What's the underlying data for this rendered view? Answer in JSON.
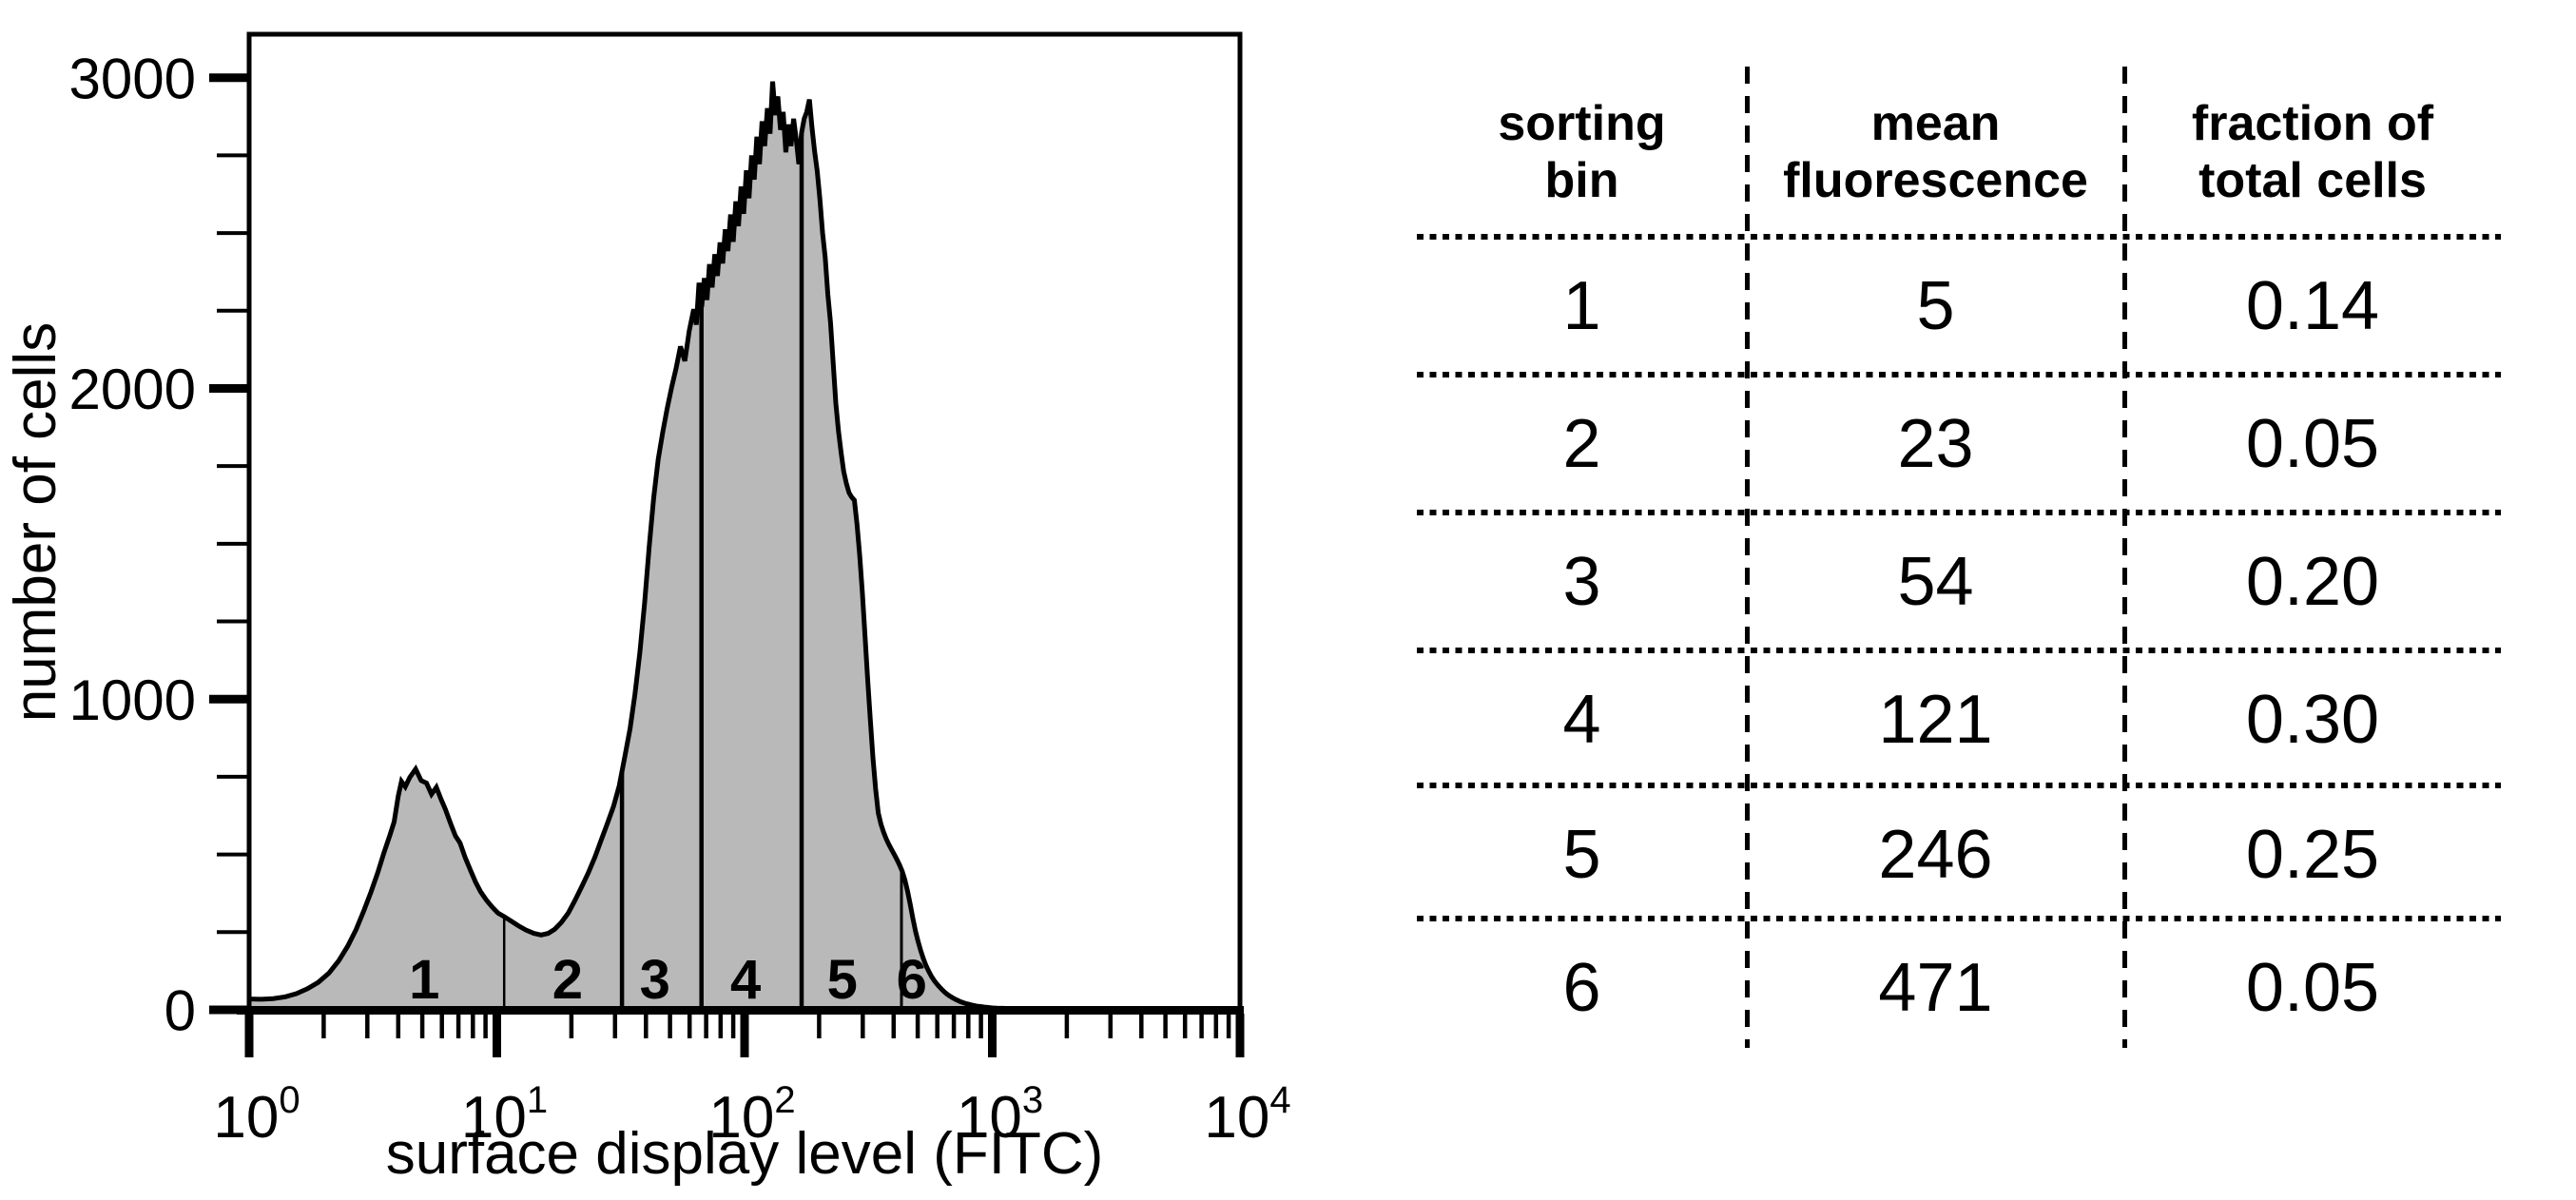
{
  "chart_data": [
    {
      "type": "area",
      "title": "",
      "xlabel": "surface display level (FITC)",
      "ylabel": "number of cells",
      "x_scale": "log",
      "xlim": [
        1,
        10000
      ],
      "ylim": [
        0,
        3140
      ],
      "grid": false,
      "fill_color": "#b9b9b9",
      "line_color": "#000000",
      "y_major_ticks": [
        {
          "value": 0,
          "label": "0"
        },
        {
          "value": 1000,
          "label": "1000"
        },
        {
          "value": 2000,
          "label": "2000"
        },
        {
          "value": 3000,
          "label": "3000"
        }
      ],
      "y_minor_ticks": [
        250,
        500,
        750,
        1250,
        1500,
        1750,
        2250,
        2500,
        2750
      ],
      "x_major_ticks": [
        {
          "value": 1,
          "base": "10",
          "exponent": "0"
        },
        {
          "value": 10,
          "base": "10",
          "exponent": "1"
        },
        {
          "value": 100,
          "base": "10",
          "exponent": "2"
        },
        {
          "value": 1000,
          "base": "10",
          "exponent": "3"
        },
        {
          "value": 10000,
          "base": "10",
          "exponent": "4"
        }
      ],
      "x_minor_tick_multiples": [
        2,
        3,
        4,
        5,
        6,
        7,
        8,
        9
      ],
      "sorting_bins": {
        "divider_x_values": [
          10.7,
          32,
          67,
          170,
          430
        ],
        "labels": [
          {
            "text": "1",
            "x": 5.1
          },
          {
            "text": "2",
            "x": 19.3
          },
          {
            "text": "3",
            "x": 43.5
          },
          {
            "text": "4",
            "x": 101
          },
          {
            "text": "5",
            "x": 248
          },
          {
            "text": "6",
            "x": 473
          }
        ]
      },
      "points": [
        [
          1.0,
          35
        ],
        [
          1.12,
          34
        ],
        [
          1.25,
          36
        ],
        [
          1.4,
          42
        ],
        [
          1.55,
          52
        ],
        [
          1.72,
          68
        ],
        [
          1.9,
          88
        ],
        [
          2.1,
          118
        ],
        [
          2.3,
          158
        ],
        [
          2.5,
          205
        ],
        [
          2.7,
          258
        ],
        [
          2.9,
          318
        ],
        [
          3.1,
          378
        ],
        [
          3.3,
          440
        ],
        [
          3.5,
          505
        ],
        [
          3.7,
          562
        ],
        [
          3.85,
          605
        ],
        [
          4.0,
          688
        ],
        [
          4.12,
          735
        ],
        [
          4.27,
          718
        ],
        [
          4.45,
          748
        ],
        [
          4.7,
          775
        ],
        [
          4.95,
          738
        ],
        [
          5.2,
          730
        ],
        [
          5.45,
          694
        ],
        [
          5.7,
          716
        ],
        [
          5.95,
          678
        ],
        [
          6.2,
          645
        ],
        [
          6.5,
          600
        ],
        [
          6.8,
          560
        ],
        [
          7.1,
          537
        ],
        [
          7.45,
          490
        ],
        [
          7.8,
          452
        ],
        [
          8.2,
          412
        ],
        [
          8.6,
          380
        ],
        [
          9.1,
          352
        ],
        [
          9.6,
          330
        ],
        [
          10.1,
          312
        ],
        [
          10.7,
          300
        ],
        [
          11.4,
          286
        ],
        [
          12.2,
          271
        ],
        [
          13.1,
          257
        ],
        [
          14.1,
          246
        ],
        [
          15.1,
          241
        ],
        [
          16.1,
          246
        ],
        [
          17.1,
          259
        ],
        [
          18.2,
          281
        ],
        [
          19.4,
          311
        ],
        [
          20.6,
          350
        ],
        [
          22.0,
          396
        ],
        [
          23.4,
          441
        ],
        [
          24.9,
          492
        ],
        [
          26.4,
          547
        ],
        [
          28.0,
          602
        ],
        [
          29.6,
          656
        ],
        [
          31.2,
          721
        ],
        [
          32.8,
          812
        ],
        [
          34.5,
          905
        ],
        [
          36.1,
          1015
        ],
        [
          37.8,
          1150
        ],
        [
          39.5,
          1310
        ],
        [
          41.2,
          1490
        ],
        [
          43.0,
          1650
        ],
        [
          44.8,
          1772
        ],
        [
          46.7,
          1858
        ],
        [
          48.7,
          1935
        ],
        [
          50.8,
          2005
        ],
        [
          52.9,
          2065
        ],
        [
          55.1,
          2135
        ],
        [
          57.4,
          2088
        ],
        [
          59.8,
          2185
        ],
        [
          62.3,
          2255
        ],
        [
          63.9,
          2205
        ],
        [
          65.5,
          2340
        ],
        [
          67.1,
          2262
        ],
        [
          68.8,
          2355
        ],
        [
          70.5,
          2285
        ],
        [
          72.2,
          2400
        ],
        [
          74.0,
          2325
        ],
        [
          75.8,
          2432
        ],
        [
          77.7,
          2362
        ],
        [
          79.6,
          2470
        ],
        [
          81.6,
          2402
        ],
        [
          83.6,
          2512
        ],
        [
          85.7,
          2442
        ],
        [
          87.8,
          2560
        ],
        [
          90.0,
          2472
        ],
        [
          92.2,
          2602
        ],
        [
          94.5,
          2522
        ],
        [
          96.8,
          2650
        ],
        [
          99.2,
          2562
        ],
        [
          101.7,
          2702
        ],
        [
          104.2,
          2612
        ],
        [
          106.8,
          2750
        ],
        [
          109.4,
          2672
        ],
        [
          112.1,
          2810
        ],
        [
          114.9,
          2722
        ],
        [
          117.7,
          2860
        ],
        [
          120.6,
          2780
        ],
        [
          123.6,
          2902
        ],
        [
          126.7,
          2820
        ],
        [
          129.8,
          2988
        ],
        [
          133.0,
          2880
        ],
        [
          136.3,
          2940
        ],
        [
          139.7,
          2832
        ],
        [
          143.2,
          2890
        ],
        [
          146.7,
          2760
        ],
        [
          150.3,
          2850
        ],
        [
          154.0,
          2780
        ],
        [
          157.8,
          2868
        ],
        [
          161.7,
          2800
        ],
        [
          165.7,
          2722
        ],
        [
          169.8,
          2822
        ],
        [
          174.0,
          2868
        ],
        [
          178.3,
          2890
        ],
        [
          182.7,
          2930
        ],
        [
          187.2,
          2840
        ],
        [
          191.8,
          2762
        ],
        [
          196.5,
          2700
        ],
        [
          201.4,
          2610
        ],
        [
          206.4,
          2502
        ],
        [
          211.6,
          2422
        ],
        [
          216.9,
          2302
        ],
        [
          222.3,
          2212
        ],
        [
          227.9,
          2082
        ],
        [
          233.6,
          1952
        ],
        [
          239.4,
          1862
        ],
        [
          245.4,
          1792
        ],
        [
          251.5,
          1732
        ],
        [
          257.8,
          1694
        ],
        [
          264.2,
          1664
        ],
        [
          270.8,
          1650
        ],
        [
          277.6,
          1640
        ],
        [
          284.5,
          1562
        ],
        [
          291.6,
          1462
        ],
        [
          298.9,
          1342
        ],
        [
          306.4,
          1202
        ],
        [
          314.1,
          1062
        ],
        [
          321.9,
          932
        ],
        [
          329.9,
          812
        ],
        [
          338.2,
          712
        ],
        [
          346.6,
          634
        ],
        [
          355.3,
          598
        ],
        [
          364.2,
          572
        ],
        [
          373.3,
          550
        ],
        [
          382.6,
          532
        ],
        [
          392.2,
          516
        ],
        [
          402.0,
          500
        ],
        [
          412.0,
          484
        ],
        [
          422.3,
          466
        ],
        [
          432.9,
          446
        ],
        [
          443.7,
          418
        ],
        [
          454.8,
          382
        ],
        [
          466.2,
          340
        ],
        [
          477.8,
          296
        ],
        [
          489.7,
          254
        ],
        [
          501.9,
          220
        ],
        [
          514.5,
          190
        ],
        [
          527.3,
          164
        ],
        [
          540.5,
          142
        ],
        [
          554.0,
          124
        ],
        [
          567.8,
          108
        ],
        [
          582.0,
          95
        ],
        [
          596.6,
          84
        ],
        [
          611.5,
          74
        ],
        [
          626.8,
          65
        ],
        [
          642.4,
          57
        ],
        [
          658.5,
          50
        ],
        [
          675.0,
          44
        ],
        [
          691.9,
          39
        ],
        [
          709.2,
          34
        ],
        [
          727.0,
          30
        ],
        [
          745.2,
          26
        ],
        [
          763.8,
          23
        ],
        [
          783.0,
          20
        ],
        [
          802.6,
          18
        ],
        [
          822.7,
          16
        ],
        [
          843.3,
          14
        ],
        [
          864.4,
          12
        ],
        [
          886.1,
          11
        ],
        [
          908.3,
          10
        ],
        [
          931.0,
          9
        ],
        [
          954.3,
          8
        ],
        [
          978.2,
          7
        ],
        [
          1002.7,
          6
        ],
        [
          1055.0,
          5
        ],
        [
          1110.0,
          5
        ],
        [
          1170.0,
          4
        ],
        [
          1230.0,
          4
        ],
        [
          1300.0,
          4
        ],
        [
          1400.0,
          3
        ],
        [
          1600.0,
          3
        ],
        [
          2000.0,
          3
        ],
        [
          2500.0,
          3
        ],
        [
          3200.0,
          3
        ],
        [
          4000.0,
          3
        ],
        [
          5000.0,
          3
        ],
        [
          6300.0,
          3
        ],
        [
          8000.0,
          3
        ],
        [
          10000.0,
          3
        ]
      ]
    },
    {
      "type": "table",
      "columns": [
        [
          "sorting",
          "bin"
        ],
        [
          "mean",
          "fluorescence"
        ],
        [
          "fraction of",
          "total cells"
        ]
      ],
      "rows": [
        [
          "1",
          "5",
          "0.14"
        ],
        [
          "2",
          "23",
          "0.05"
        ],
        [
          "3",
          "54",
          "0.20"
        ],
        [
          "4",
          "121",
          "0.30"
        ],
        [
          "5",
          "246",
          "0.25"
        ],
        [
          "6",
          "471",
          "0.05"
        ]
      ]
    }
  ]
}
